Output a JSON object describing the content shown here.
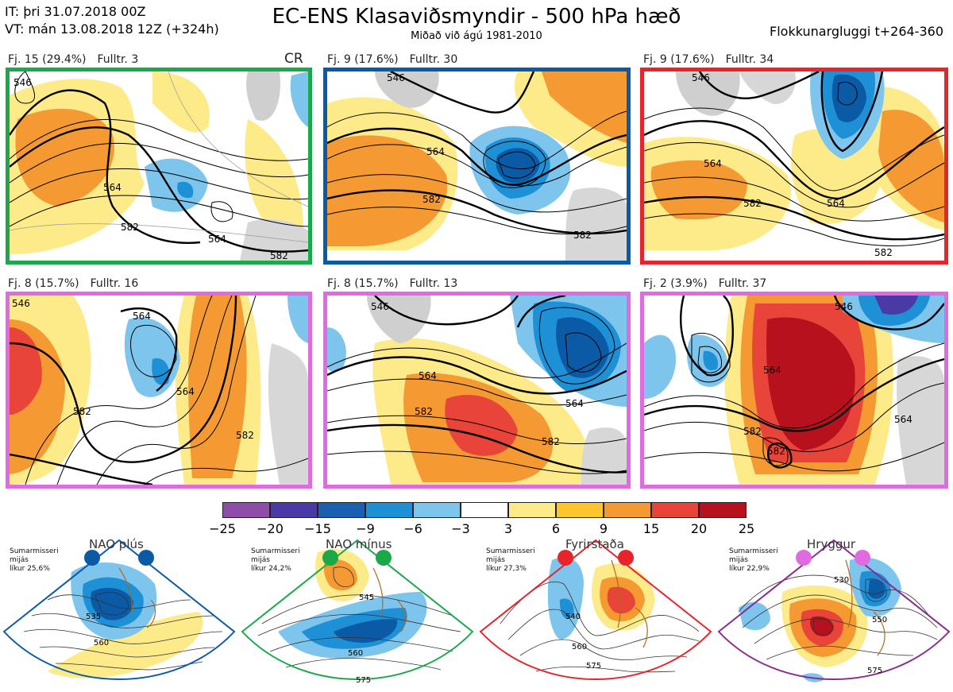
{
  "header": {
    "it_line": "IT: þri 31.07.2018 00Z",
    "vt_line": "VT: mán 13.08.2018 12Z  (+324h)",
    "title": "EC-ENS Klasaviðsmyndir - 500 hPa hæð",
    "subtitle": "Miðað við ágú 1981-2010",
    "window": "Flokkunargluggi t+264-360"
  },
  "colors": {
    "green": "#1aa84a",
    "blue": "#0b5aa6",
    "red": "#e8242a",
    "magenta": "#e06be0",
    "purple": "#8a2b8e"
  },
  "panels": [
    {
      "id": "p1",
      "fj": "Fj. 15 (29.4%)",
      "fulltr": "Fulltr. 3",
      "border": "green",
      "extra": "CR",
      "contours": [
        "546",
        "564",
        "582",
        "564",
        "582"
      ]
    },
    {
      "id": "p2",
      "fj": "Fj. 9 (17.6%)",
      "fulltr": "Fulltr. 30",
      "border": "blue",
      "contours": [
        "546",
        "564",
        "582",
        "582"
      ]
    },
    {
      "id": "p3",
      "fj": "Fj. 9 (17.6%)",
      "fulltr": "Fulltr. 34",
      "border": "red",
      "contours": [
        "546",
        "564",
        "582",
        "564",
        "582"
      ]
    },
    {
      "id": "p4",
      "fj": "Fj. 8 (15.7%)",
      "fulltr": "Fulltr. 16",
      "border": "magenta",
      "contours": [
        "546",
        "564",
        "582",
        "564",
        "582"
      ]
    },
    {
      "id": "p5",
      "fj": "Fj. 8 (15.7%)",
      "fulltr": "Fulltr. 13",
      "border": "magenta",
      "contours": [
        "546",
        "564",
        "582",
        "564",
        "582"
      ]
    },
    {
      "id": "p6",
      "fj": "Fj. 2 (3.9%)",
      "fulltr": "Fulltr. 37",
      "border": "magenta",
      "contours": [
        "546",
        "564",
        "582",
        "564",
        "582"
      ]
    }
  ],
  "colorbar": {
    "ticks": [
      "−25",
      "−20",
      "−15",
      "−9",
      "−6",
      "−3",
      "3",
      "6",
      "9",
      "15",
      "20",
      "25"
    ],
    "colors": [
      "#8e4da8",
      "#4a3aa6",
      "#1b5fb0",
      "#1e90d6",
      "#7ec5ee",
      "#ffffff",
      "#fdeb8a",
      "#fec52c",
      "#f59a32",
      "#e8443a",
      "#b8111e"
    ]
  },
  "regimes": [
    {
      "id": "r1",
      "name": "NAO plús",
      "info": [
        "Sumarmisseri",
        "mijás",
        "líkur 25,6%"
      ],
      "border": "blue",
      "labels": [
        "535",
        "560"
      ]
    },
    {
      "id": "r2",
      "name": "NAO mínus",
      "info": [
        "Sumarmisseri",
        "mijás",
        "líkur 24,2%"
      ],
      "border": "green",
      "labels": [
        "545",
        "560",
        "575"
      ]
    },
    {
      "id": "r3",
      "name": "Fyrirstaða",
      "info": [
        "Sumarmisseri",
        "mijás",
        "líkur 27,3%"
      ],
      "border": "red",
      "labels": [
        "540",
        "560",
        "575"
      ]
    },
    {
      "id": "r4",
      "name": "Hryggur",
      "info": [
        "Sumarmisseri",
        "mijás",
        "líkur 22,9%"
      ],
      "border": "purple",
      "labels": [
        "530",
        "550",
        "575"
      ]
    }
  ]
}
